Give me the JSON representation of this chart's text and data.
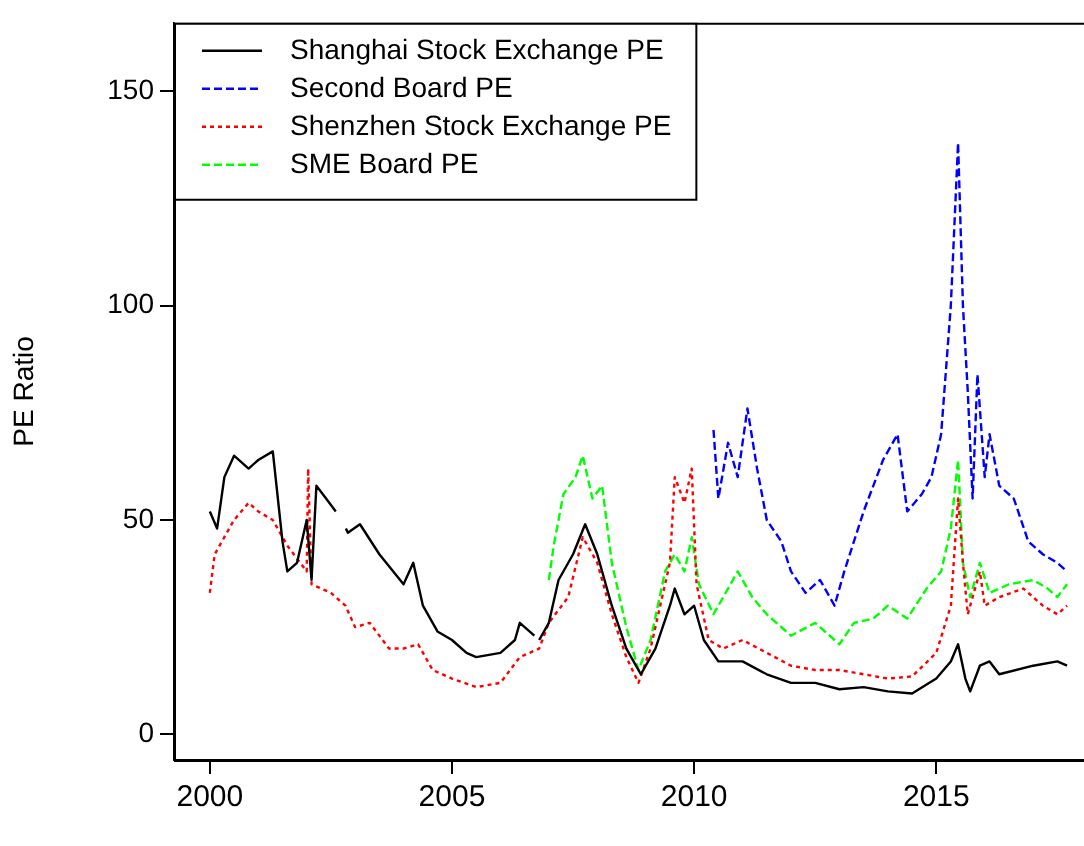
{
  "chart_data": {
    "type": "line",
    "ylabel": "PE Ratio",
    "xlim": [
      1999.26,
      2018.05
    ],
    "ylim": [
      -6,
      166
    ],
    "xticks": [
      {
        "value": 2000,
        "label": "2000"
      },
      {
        "value": 2005,
        "label": "2005"
      },
      {
        "value": 2010,
        "label": "2010"
      },
      {
        "value": 2015,
        "label": "2015"
      }
    ],
    "yticks": [
      0,
      50,
      100,
      150
    ],
    "grid": false,
    "legend": "top left",
    "marker": "none",
    "series": [
      {
        "name": "Shanghai Stock Exchange PE",
        "color": "#000000",
        "line_style": "solid",
        "x": [
          2000,
          2000.15,
          2000.3,
          2000.5,
          2000.8,
          2001,
          2001.3,
          2001.5,
          2001.6,
          2001.8,
          2002,
          2002.1,
          2002.2,
          2002.4,
          2002.6,
          2002.77,
          2002.81,
          2002.85,
          2003.1,
          2003.5,
          2004,
          2004.2,
          2004.4,
          2004.7,
          2005,
          2005.3,
          2005.5,
          2006,
          2006.3,
          2006.4,
          2006.7,
          2006.75,
          2006.8,
          2007,
          2007.2,
          2007.5,
          2007.75,
          2008,
          2008.3,
          2008.6,
          2008.9,
          2009.2,
          2009.5,
          2009.6,
          2009.8,
          2010,
          2010.2,
          2010.5,
          2011,
          2011.5,
          2012,
          2012.5,
          2013,
          2013.5,
          2014,
          2014.5,
          2015,
          2015.3,
          2015.45,
          2015.6,
          2015.7,
          2015.9,
          2016.1,
          2016.3,
          2017,
          2017.5,
          2017.7
        ],
        "values": [
          52,
          48,
          60,
          65,
          62,
          64,
          66,
          45,
          38,
          40,
          50,
          36,
          58,
          55,
          52,
          null,
          48,
          47,
          49,
          42,
          35,
          40,
          30,
          24,
          22,
          19,
          18,
          19,
          22,
          26,
          23,
          null,
          22,
          26,
          36,
          42,
          49,
          42,
          30,
          20,
          14,
          20,
          30,
          34,
          28,
          30,
          22,
          17,
          17,
          14,
          12,
          12,
          10.5,
          11,
          10,
          9.5,
          13,
          17,
          21,
          13,
          10,
          16,
          17,
          14,
          16,
          17,
          16
        ]
      },
      {
        "name": "Second Board PE",
        "color": "#0000ff",
        "line_style": "dashed",
        "x": [
          2010.4,
          2010.5,
          2010.7,
          2010.9,
          2011.1,
          2011.3,
          2011.5,
          2011.8,
          2012,
          2012.3,
          2012.6,
          2012.9,
          2013.1,
          2013.5,
          2013.9,
          2014.2,
          2014.4,
          2014.7,
          2014.9,
          2015.1,
          2015.3,
          2015.45,
          2015.55,
          2015.65,
          2015.75,
          2015.85,
          2016,
          2016.1,
          2016.3,
          2016.6,
          2016.9,
          2017.2,
          2017.5,
          2017.7
        ],
        "values": [
          71,
          55,
          68,
          60,
          76,
          62,
          50,
          45,
          38,
          33,
          36,
          30,
          38,
          52,
          64,
          70,
          52,
          56,
          60,
          70,
          100,
          138,
          100,
          80,
          55,
          84,
          60,
          70,
          58,
          55,
          45,
          42,
          40,
          38
        ]
      },
      {
        "name": "Shenzhen Stock Exchange PE",
        "color": "#ff0000",
        "line_style": "dotted",
        "x": [
          2000,
          2000.1,
          2000.5,
          2000.8,
          2001,
          2001.3,
          2001.6,
          2002,
          2002.03,
          2002.1,
          2002.5,
          2002.8,
          2003,
          2003.3,
          2003.7,
          2004,
          2004.3,
          2004.6,
          2005,
          2005.5,
          2006,
          2006.4,
          2006.8,
          2007,
          2007.4,
          2007.7,
          2008,
          2008.3,
          2008.6,
          2008.85,
          2009.1,
          2009.3,
          2009.5,
          2009.6,
          2009.8,
          2009.95,
          2010.05,
          2010.3,
          2010.6,
          2011,
          2011.5,
          2012,
          2012.5,
          2013,
          2013.5,
          2014,
          2014.5,
          2015,
          2015.3,
          2015.45,
          2015.55,
          2015.65,
          2015.9,
          2016,
          2016.3,
          2016.8,
          2017.2,
          2017.5,
          2017.7
        ],
        "values": [
          33,
          42,
          50,
          54,
          52,
          50,
          44,
          38,
          62,
          35,
          33,
          30,
          25,
          26,
          20,
          20,
          21,
          15,
          13,
          11,
          12,
          18,
          20,
          26,
          32,
          46,
          40,
          28,
          18,
          12,
          20,
          30,
          40,
          60,
          54,
          62,
          35,
          22,
          20,
          22,
          19,
          16,
          15,
          15,
          14,
          13,
          13.5,
          19,
          30,
          55,
          40,
          28,
          38,
          30,
          32,
          34,
          30,
          28,
          30
        ]
      },
      {
        "name": "SME Board PE",
        "color": "#00ff00",
        "line_style": "dashed",
        "x": [
          2007,
          2007.1,
          2007.3,
          2007.55,
          2007.7,
          2007.9,
          2008.1,
          2008.3,
          2008.6,
          2008.85,
          2009.1,
          2009.4,
          2009.6,
          2009.8,
          2009.95,
          2010.1,
          2010.4,
          2010.7,
          2010.9,
          2011.2,
          2011.5,
          2012,
          2012.5,
          2013,
          2013.3,
          2013.7,
          2014,
          2014.4,
          2014.8,
          2015.1,
          2015.3,
          2015.45,
          2015.55,
          2015.7,
          2015.9,
          2016.1,
          2016.5,
          2017,
          2017.3,
          2017.5,
          2017.7
        ],
        "values": [
          36,
          44,
          56,
          60,
          65,
          55,
          58,
          40,
          25,
          15,
          22,
          38,
          42,
          38,
          46,
          35,
          28,
          34,
          38,
          32,
          28,
          23,
          26,
          21,
          26,
          27,
          30,
          27,
          34,
          38,
          48,
          64,
          40,
          32,
          40,
          33,
          35,
          36,
          34,
          32,
          35
        ]
      }
    ]
  }
}
